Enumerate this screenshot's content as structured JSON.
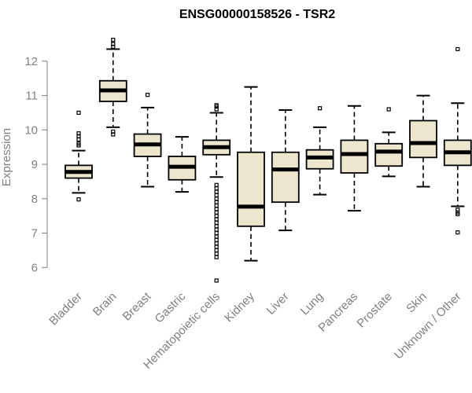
{
  "chart_data": {
    "type": "boxplot",
    "title": "ENSG00000158526 - TSR2",
    "xlabel": "",
    "ylabel": "Expression",
    "ylim": [
      5.55,
      12.75
    ],
    "yticks": [
      6,
      7,
      8,
      9,
      10,
      11,
      12
    ],
    "colors": {
      "box_fill": "#ede6cf",
      "box_stroke": "#000000",
      "median": "#000000",
      "axis": "#808080"
    },
    "categories": [
      "Bladder",
      "Brain",
      "Breast",
      "Gastric",
      "Hematopoietic cells",
      "Kidney",
      "Liver",
      "Lung",
      "Pancreas",
      "Prostate",
      "Skin",
      "Unknown / Other"
    ],
    "boxes": [
      {
        "name": "Bladder",
        "q1": 8.6,
        "median": 8.78,
        "q3": 8.97,
        "whisker_low": 8.17,
        "whisker_high": 9.4,
        "outliers": [
          10.5,
          9.9,
          9.82,
          9.72,
          9.6,
          9.55,
          7.98
        ]
      },
      {
        "name": "Brain",
        "q1": 10.83,
        "median": 11.15,
        "q3": 11.43,
        "whisker_low": 10.08,
        "whisker_high": 12.35,
        "outliers": [
          12.62,
          12.5,
          12.42,
          9.95,
          9.87
        ]
      },
      {
        "name": "Breast",
        "q1": 9.23,
        "median": 9.58,
        "q3": 9.88,
        "whisker_low": 8.35,
        "whisker_high": 10.65,
        "outliers": [
          11.02
        ]
      },
      {
        "name": "Gastric",
        "q1": 8.55,
        "median": 8.93,
        "q3": 9.23,
        "whisker_low": 8.2,
        "whisker_high": 9.8,
        "outliers": []
      },
      {
        "name": "Hematopoietic cells",
        "q1": 9.28,
        "median": 9.5,
        "q3": 9.7,
        "whisker_low": 8.63,
        "whisker_high": 10.5,
        "outliers": [
          10.72,
          10.68,
          10.6,
          8.4,
          8.3,
          8.2,
          8.1,
          8.0,
          7.9,
          7.8,
          7.7,
          7.6,
          7.5,
          7.4,
          7.3,
          7.2,
          7.1,
          7.0,
          6.9,
          6.8,
          6.7,
          6.6,
          6.5,
          6.4,
          6.3,
          5.62
        ]
      },
      {
        "name": "Kidney",
        "q1": 7.2,
        "median": 7.77,
        "q3": 9.35,
        "whisker_low": 6.2,
        "whisker_high": 11.25,
        "outliers": []
      },
      {
        "name": "Liver",
        "q1": 7.9,
        "median": 8.85,
        "q3": 9.35,
        "whisker_low": 7.08,
        "whisker_high": 10.58,
        "outliers": []
      },
      {
        "name": "Lung",
        "q1": 8.87,
        "median": 9.2,
        "q3": 9.42,
        "whisker_low": 8.12,
        "whisker_high": 10.08,
        "outliers": [
          10.63
        ]
      },
      {
        "name": "Pancreas",
        "q1": 8.75,
        "median": 9.3,
        "q3": 9.7,
        "whisker_low": 7.65,
        "whisker_high": 10.7,
        "outliers": []
      },
      {
        "name": "Prostate",
        "q1": 8.95,
        "median": 9.37,
        "q3": 9.6,
        "whisker_low": 8.65,
        "whisker_high": 9.93,
        "outliers": [
          10.6
        ]
      },
      {
        "name": "Skin",
        "q1": 9.2,
        "median": 9.62,
        "q3": 10.27,
        "whisker_low": 8.35,
        "whisker_high": 11.0,
        "outliers": []
      },
      {
        "name": "Unknown / Other",
        "q1": 8.97,
        "median": 9.35,
        "q3": 9.7,
        "whisker_low": 7.78,
        "whisker_high": 10.78,
        "outliers": [
          12.35,
          7.68,
          7.6,
          7.55,
          7.02
        ]
      }
    ]
  }
}
